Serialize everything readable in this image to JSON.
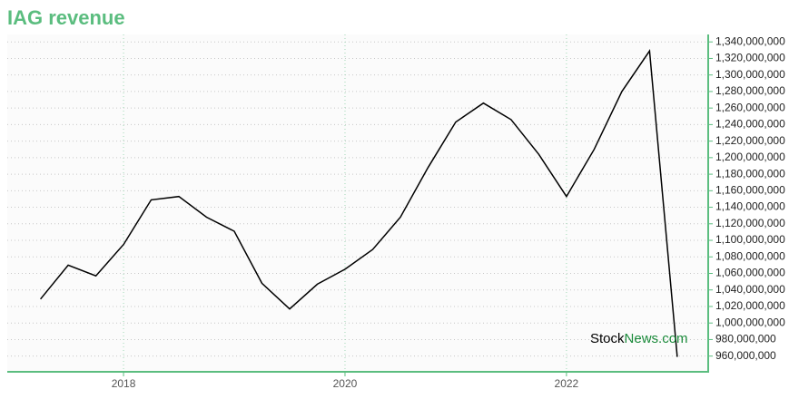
{
  "chart_data": {
    "type": "line",
    "title": "IAG revenue",
    "watermark": [
      "Stock",
      "News.com"
    ],
    "x": [
      2017.25,
      2017.5,
      2017.75,
      2018.0,
      2018.25,
      2018.5,
      2018.75,
      2019.0,
      2019.25,
      2019.5,
      2019.75,
      2020.0,
      2020.25,
      2020.5,
      2020.75,
      2021.0,
      2021.25,
      2021.5,
      2021.75,
      2022.0,
      2022.25,
      2022.5,
      2022.75,
      2023.0
    ],
    "series": [
      {
        "name": "Revenue",
        "color": "#000000",
        "values": [
          1029000000,
          1070000000,
          1057000000,
          1095000000,
          1149000000,
          1153000000,
          1128000000,
          1111000000,
          1048000000,
          1017000000,
          1047000000,
          1065000000,
          1089000000,
          1128000000,
          1188000000,
          1243000000,
          1266000000,
          1246000000,
          1204000000,
          1153000000,
          1210000000,
          1280000000,
          1329000000,
          959000000
        ]
      }
    ],
    "xlim": [
      2016.95,
      2023.28
    ],
    "xticks": [
      2018,
      2020,
      2022
    ],
    "ylim": [
      941000000,
      1349000000
    ],
    "yticks": [
      {
        "value": 960000000,
        "label": "960,000,000"
      },
      {
        "value": 980000000,
        "label": "980,000,000"
      },
      {
        "value": 1000000000,
        "label": "1,000,000,000"
      },
      {
        "value": 1020000000,
        "label": "1,020,000,000"
      },
      {
        "value": 1040000000,
        "label": "1,040,000,000"
      },
      {
        "value": 1060000000,
        "label": "1,060,000,000"
      },
      {
        "value": 1080000000,
        "label": "1,080,000,000"
      },
      {
        "value": 1100000000,
        "label": "1,100,000,000"
      },
      {
        "value": 1120000000,
        "label": "1,120,000,000"
      },
      {
        "value": 1140000000,
        "label": "1,140,000,000"
      },
      {
        "value": 1160000000,
        "label": "1,160,000,000"
      },
      {
        "value": 1180000000,
        "label": "1,180,000,000"
      },
      {
        "value": 1200000000,
        "label": "1,200,000,000"
      },
      {
        "value": 1220000000,
        "label": "1,220,000,000"
      },
      {
        "value": 1240000000,
        "label": "1,240,000,000"
      },
      {
        "value": 1260000000,
        "label": "1,260,000,000"
      },
      {
        "value": 1280000000,
        "label": "1,280,000,000"
      },
      {
        "value": 1300000000,
        "label": "1,300,000,000"
      },
      {
        "value": 1320000000,
        "label": "1,320,000,000"
      },
      {
        "value": 1340000000,
        "label": "1,340,000,000"
      }
    ],
    "grid": true,
    "axis_color": "#5bbd7f"
  }
}
